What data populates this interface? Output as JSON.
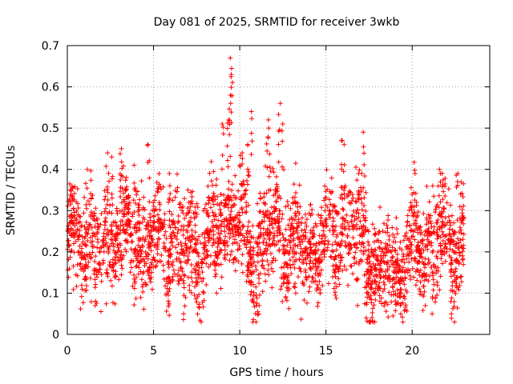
{
  "colors": {
    "points": "#ff0000",
    "axis": "#000000",
    "grid": "#a0a0a0",
    "background": "#ffffff"
  },
  "chart_data": {
    "type": "scatter",
    "title": "Day 081 of 2025, SRMTID for receiver 3wkb",
    "xlabel": "GPS time / hours",
    "ylabel": "SRMTID / TECUs",
    "xlim": [
      0,
      24.5
    ],
    "ylim": [
      0,
      0.7
    ],
    "xticks": [
      0,
      5,
      10,
      15,
      20
    ],
    "xtick_labels": [
      "0",
      "5",
      "10",
      "15",
      "20"
    ],
    "yticks": [
      0,
      0.1,
      0.2,
      0.3,
      0.4,
      0.5,
      0.6,
      0.7
    ],
    "ytick_labels": [
      "0",
      "0.1",
      "0.2",
      "0.3",
      "0.4",
      "0.5",
      "0.6",
      "0.7"
    ],
    "grid": true,
    "marker": "+",
    "x_range_data": [
      0,
      23
    ],
    "points_per_hour": 120,
    "baseline": [
      [
        0.0,
        0.24
      ],
      [
        1.0,
        0.23
      ],
      [
        2.0,
        0.21
      ],
      [
        3.0,
        0.27
      ],
      [
        4.0,
        0.22
      ],
      [
        5.0,
        0.23
      ],
      [
        6.0,
        0.22
      ],
      [
        7.0,
        0.21
      ],
      [
        8.0,
        0.21
      ],
      [
        9.0,
        0.26
      ],
      [
        9.5,
        0.31
      ],
      [
        10.0,
        0.24
      ],
      [
        11.0,
        0.2
      ],
      [
        12.0,
        0.27
      ],
      [
        13.0,
        0.22
      ],
      [
        14.0,
        0.21
      ],
      [
        15.0,
        0.23
      ],
      [
        16.0,
        0.26
      ],
      [
        17.0,
        0.25
      ],
      [
        17.5,
        0.18
      ],
      [
        18.0,
        0.14
      ],
      [
        19.0,
        0.16
      ],
      [
        20.0,
        0.2
      ],
      [
        21.0,
        0.22
      ],
      [
        22.0,
        0.22
      ],
      [
        23.0,
        0.22
      ]
    ],
    "spread": 0.06,
    "peaks": [
      [
        0.3,
        0.33
      ],
      [
        1.1,
        0.4
      ],
      [
        1.6,
        0.07
      ],
      [
        2.3,
        0.44
      ],
      [
        2.6,
        0.43
      ],
      [
        3.1,
        0.45
      ],
      [
        3.9,
        0.41
      ],
      [
        4.7,
        0.46
      ],
      [
        5.3,
        0.29
      ],
      [
        5.9,
        0.39
      ],
      [
        6.8,
        0.05
      ],
      [
        7.1,
        0.32
      ],
      [
        8.1,
        0.3
      ],
      [
        8.6,
        0.1
      ],
      [
        9.0,
        0.51
      ],
      [
        9.3,
        0.52
      ],
      [
        9.5,
        0.67
      ],
      [
        9.55,
        0.63
      ],
      [
        9.45,
        0.58
      ],
      [
        10.1,
        0.44
      ],
      [
        10.5,
        0.46
      ],
      [
        10.7,
        0.54
      ],
      [
        11.0,
        0.03
      ],
      [
        11.1,
        0.07
      ],
      [
        11.6,
        0.52
      ],
      [
        11.7,
        0.5
      ],
      [
        12.3,
        0.56
      ],
      [
        12.5,
        0.51
      ],
      [
        13.2,
        0.1
      ],
      [
        13.7,
        0.12
      ],
      [
        14.7,
        0.1
      ],
      [
        15.9,
        0.47
      ],
      [
        16.1,
        0.46
      ],
      [
        16.8,
        0.07
      ],
      [
        17.2,
        0.49
      ],
      [
        17.3,
        0.04
      ],
      [
        18.1,
        0.08
      ],
      [
        19.6,
        0.06
      ],
      [
        20.2,
        0.39
      ],
      [
        20.4,
        0.2
      ],
      [
        20.9,
        0.29
      ],
      [
        21.2,
        0.05
      ],
      [
        21.6,
        0.4
      ],
      [
        21.8,
        0.39
      ],
      [
        22.3,
        0.05
      ],
      [
        22.6,
        0.39
      ]
    ]
  }
}
